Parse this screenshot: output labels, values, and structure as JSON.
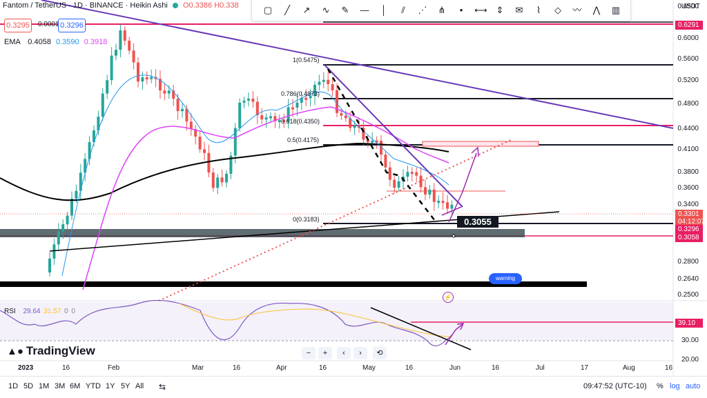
{
  "header": {
    "symbol": "Fantom / TetherUS · 1D · BINANCE · Heikin Ashi",
    "ohlc": "O0.3386 H0.338",
    "bid": "0.3295",
    "spread": "0.0001",
    "ask": "0.3296",
    "ema_label": "EMA",
    "ema_values": [
      "0.4058",
      "0.3590",
      "0.3918"
    ]
  },
  "colors": {
    "up": "#26a69a",
    "down": "#ef5350",
    "magenta": "#e91e63",
    "purple": "#673ab7",
    "ema_blue": "#2196f3",
    "ema_magenta": "#e040fb",
    "black": "#131722"
  },
  "price_axis": {
    "currency": "USDT",
    "ticks": [
      "0.6500",
      "0.6000",
      "0.5600",
      "0.5200",
      "0.4800",
      "0.4400",
      "0.4100",
      "0.3800",
      "0.3600",
      "0.3400",
      "0.2800",
      "0.2640",
      "0.2500"
    ],
    "badges": [
      {
        "label": "0.6291",
        "color": "#e91e63"
      },
      {
        "label": "0.3301",
        "color": "#ef5350"
      },
      {
        "label": "04:12:07",
        "color": "#ef5350"
      },
      {
        "label": "0.3296",
        "color": "#e91e63"
      },
      {
        "label": "0.3058",
        "color": "#e91e63"
      },
      {
        "label": "39.10",
        "color": "#e91e63"
      }
    ]
  },
  "fib_labels": [
    "1(0.5475)",
    "0.786(0.4873)",
    "0.618(0.4350)",
    "0.5(0.4175)",
    "0(0.3183)"
  ],
  "annotations": {
    "price_tag": "0.3055",
    "warning": "warning"
  },
  "rsi": {
    "label": "RSI",
    "v1": "29.64",
    "v2": "31.57",
    "v3": "0",
    "v4": "0",
    "ticks": [
      "30.00",
      "20.00"
    ]
  },
  "logo": "TradingView",
  "nav_buttons": [
    "−",
    "+",
    "‹",
    "›",
    "⟲"
  ],
  "time_axis": [
    "2023",
    "16",
    "Feb",
    "Mar",
    "16",
    "Apr",
    "16",
    "May",
    "16",
    "Jun",
    "16",
    "Jul",
    "17",
    "Aug",
    "16"
  ],
  "bottom_bar": {
    "ranges": [
      "1D",
      "5D",
      "1M",
      "3M",
      "6M",
      "YTD",
      "1Y",
      "5Y",
      "All"
    ],
    "clock": "09:47:52 (UTC-10)",
    "pct": "%",
    "log": "log",
    "auto": "auto"
  },
  "toolbar_icons": [
    "rectangle-icon",
    "line-icon",
    "ray-icon",
    "curve-icon",
    "brush-icon",
    "horizontal-line-icon",
    "vertical-line-icon",
    "parallel-channel-icon",
    "regression-icon",
    "pitchfork-icon",
    "dot-icon",
    "info-line-icon",
    "price-range-icon",
    "text-note-icon",
    "path-icon",
    "shape-icon",
    "pattern-icon",
    "elliott-icon",
    "bar-pattern-icon"
  ]
}
